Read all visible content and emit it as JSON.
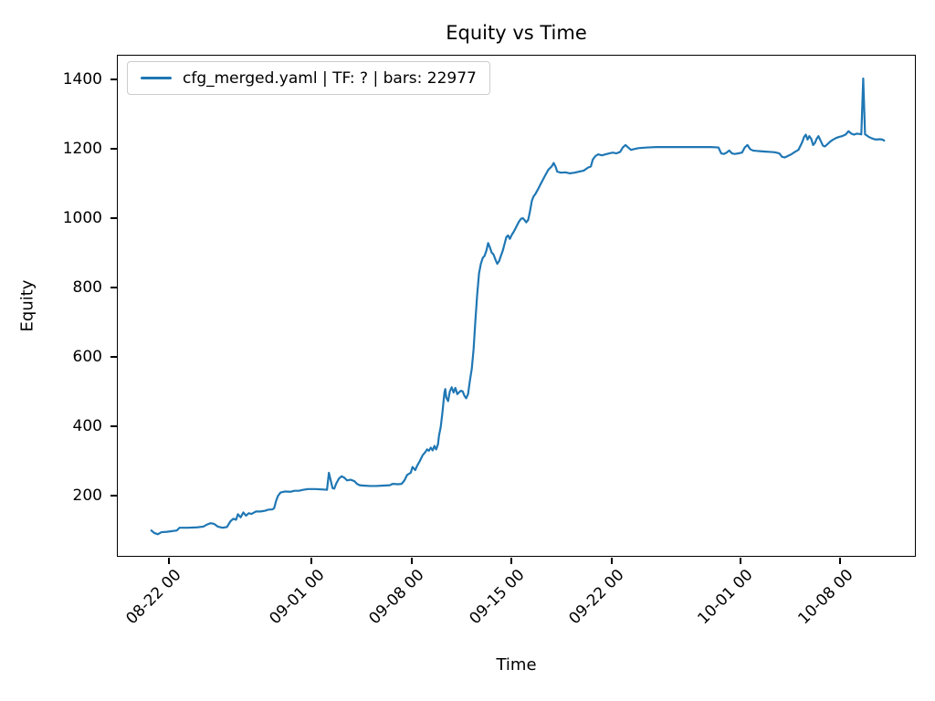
{
  "figure": {
    "title": "Equity vs Time",
    "xlabel": "Time",
    "ylabel": "Equity",
    "legend": {
      "label": "cfg_merged.yaml | TF: ? | bars: 22977",
      "line_color": "#1f77b4",
      "position": "upper left"
    }
  },
  "chart_data": {
    "type": "line",
    "title": "Equity vs Time",
    "xlabel": "Time",
    "ylabel": "Equity",
    "grid": false,
    "legend_position": "upper left",
    "x_unit": "days since 08-22 00:00",
    "xlim": [
      -3.64,
      52.3
    ],
    "ylim": [
      24,
      1471
    ],
    "y_ticks": [
      200,
      400,
      600,
      800,
      1000,
      1200,
      1400
    ],
    "x_ticks": [
      {
        "d": 0,
        "label": "08-22 00"
      },
      {
        "d": 10,
        "label": "09-01 00"
      },
      {
        "d": 17,
        "label": "09-08 00"
      },
      {
        "d": 24,
        "label": "09-15 00"
      },
      {
        "d": 31,
        "label": "09-22 00"
      },
      {
        "d": 40,
        "label": "10-01 00"
      },
      {
        "d": 47,
        "label": "10-08 00"
      }
    ],
    "series": [
      {
        "name": "cfg_merged.yaml | TF: ? | bars: 22977",
        "color": "#1f77b4",
        "points": [
          [
            -1.28,
            95
          ],
          [
            -1.09,
            88
          ],
          [
            -0.83,
            84
          ],
          [
            -0.58,
            90
          ],
          [
            -0.19,
            91
          ],
          [
            0.51,
            95
          ],
          [
            0.7,
            103
          ],
          [
            1.28,
            103
          ],
          [
            1.92,
            104
          ],
          [
            2.37,
            106
          ],
          [
            2.62,
            112
          ],
          [
            2.88,
            116
          ],
          [
            3.13,
            114
          ],
          [
            3.39,
            106
          ],
          [
            3.71,
            103
          ],
          [
            4.03,
            105
          ],
          [
            4.28,
            122
          ],
          [
            4.48,
            129
          ],
          [
            4.67,
            126
          ],
          [
            4.8,
            142
          ],
          [
            4.99,
            133
          ],
          [
            5.18,
            147
          ],
          [
            5.37,
            138
          ],
          [
            5.56,
            145
          ],
          [
            5.75,
            143
          ],
          [
            6.07,
            150
          ],
          [
            6.39,
            150
          ],
          [
            6.71,
            152
          ],
          [
            6.91,
            155
          ],
          [
            7.23,
            156
          ],
          [
            7.35,
            160
          ],
          [
            7.48,
            180
          ],
          [
            7.61,
            195
          ],
          [
            7.8,
            205
          ],
          [
            8.12,
            208
          ],
          [
            8.5,
            207
          ],
          [
            8.76,
            210
          ],
          [
            9.08,
            210
          ],
          [
            9.4,
            213
          ],
          [
            9.72,
            215
          ],
          [
            10.23,
            215
          ],
          [
            10.68,
            214
          ],
          [
            11.06,
            213
          ],
          [
            11.19,
            262
          ],
          [
            11.32,
            240
          ],
          [
            11.45,
            218
          ],
          [
            11.57,
            216
          ],
          [
            11.7,
            230
          ],
          [
            11.89,
            245
          ],
          [
            12.08,
            252
          ],
          [
            12.28,
            248
          ],
          [
            12.47,
            240
          ],
          [
            12.72,
            242
          ],
          [
            12.98,
            238
          ],
          [
            13.17,
            230
          ],
          [
            13.36,
            226
          ],
          [
            13.62,
            225
          ],
          [
            14.07,
            224
          ],
          [
            14.51,
            224
          ],
          [
            15.03,
            225
          ],
          [
            15.47,
            226
          ],
          [
            15.67,
            230
          ],
          [
            16.05,
            229
          ],
          [
            16.3,
            230
          ],
          [
            16.5,
            240
          ],
          [
            16.69,
            256
          ],
          [
            16.94,
            262
          ],
          [
            17.07,
            279
          ],
          [
            17.26,
            270
          ],
          [
            17.39,
            282
          ],
          [
            17.58,
            296
          ],
          [
            17.78,
            313
          ],
          [
            17.97,
            322
          ],
          [
            18.09,
            330
          ],
          [
            18.22,
            326
          ],
          [
            18.35,
            335
          ],
          [
            18.48,
            327
          ],
          [
            18.61,
            340
          ],
          [
            18.73,
            330
          ],
          [
            18.86,
            345
          ],
          [
            18.93,
            370
          ],
          [
            19.05,
            395
          ],
          [
            19.18,
            440
          ],
          [
            19.25,
            470
          ],
          [
            19.31,
            495
          ],
          [
            19.37,
            505
          ],
          [
            19.44,
            480
          ],
          [
            19.57,
            470
          ],
          [
            19.69,
            498
          ],
          [
            19.82,
            510
          ],
          [
            19.95,
            495
          ],
          [
            20.08,
            508
          ],
          [
            20.21,
            490
          ],
          [
            20.33,
            495
          ],
          [
            20.46,
            500
          ],
          [
            20.59,
            498
          ],
          [
            20.72,
            485
          ],
          [
            20.84,
            478
          ],
          [
            20.97,
            490
          ],
          [
            21.1,
            530
          ],
          [
            21.23,
            563
          ],
          [
            21.36,
            620
          ],
          [
            21.48,
            700
          ],
          [
            21.61,
            780
          ],
          [
            21.74,
            840
          ],
          [
            21.87,
            868
          ],
          [
            22.0,
            885
          ],
          [
            22.12,
            890
          ],
          [
            22.25,
            905
          ],
          [
            22.38,
            928
          ],
          [
            22.51,
            915
          ],
          [
            22.63,
            900
          ],
          [
            22.76,
            895
          ],
          [
            22.89,
            880
          ],
          [
            23.02,
            868
          ],
          [
            23.15,
            875
          ],
          [
            23.27,
            890
          ],
          [
            23.4,
            905
          ],
          [
            23.53,
            925
          ],
          [
            23.66,
            945
          ],
          [
            23.78,
            950
          ],
          [
            23.91,
            940
          ],
          [
            24.04,
            952
          ],
          [
            24.17,
            960
          ],
          [
            24.3,
            970
          ],
          [
            24.42,
            980
          ],
          [
            24.55,
            990
          ],
          [
            24.68,
            998
          ],
          [
            24.81,
            1000
          ],
          [
            24.93,
            995
          ],
          [
            25.06,
            988
          ],
          [
            25.19,
            995
          ],
          [
            25.32,
            1020
          ],
          [
            25.45,
            1050
          ],
          [
            25.57,
            1063
          ],
          [
            25.7,
            1070
          ],
          [
            25.83,
            1080
          ],
          [
            25.96,
            1090
          ],
          [
            26.08,
            1100
          ],
          [
            26.21,
            1110
          ],
          [
            26.34,
            1120
          ],
          [
            26.47,
            1130
          ],
          [
            26.6,
            1140
          ],
          [
            26.72,
            1145
          ],
          [
            26.85,
            1150
          ],
          [
            26.98,
            1160
          ],
          [
            27.11,
            1150
          ],
          [
            27.23,
            1135
          ],
          [
            27.49,
            1132
          ],
          [
            27.81,
            1133
          ],
          [
            28.13,
            1130
          ],
          [
            28.45,
            1132
          ],
          [
            28.77,
            1135
          ],
          [
            29.09,
            1138
          ],
          [
            29.41,
            1147
          ],
          [
            29.6,
            1150
          ],
          [
            29.73,
            1170
          ],
          [
            29.92,
            1180
          ],
          [
            30.11,
            1185
          ],
          [
            30.37,
            1182
          ],
          [
            30.63,
            1185
          ],
          [
            30.88,
            1188
          ],
          [
            31.14,
            1190
          ],
          [
            31.39,
            1188
          ],
          [
            31.65,
            1192
          ],
          [
            31.84,
            1205
          ],
          [
            32.03,
            1212
          ],
          [
            32.22,
            1205
          ],
          [
            32.42,
            1198
          ],
          [
            32.61,
            1200
          ],
          [
            32.93,
            1203
          ],
          [
            33.57,
            1205
          ],
          [
            34.21,
            1206
          ],
          [
            34.85,
            1206
          ],
          [
            35.48,
            1206
          ],
          [
            36.12,
            1206
          ],
          [
            36.76,
            1206
          ],
          [
            37.4,
            1206
          ],
          [
            38.04,
            1206
          ],
          [
            38.56,
            1205
          ],
          [
            38.75,
            1188
          ],
          [
            38.94,
            1186
          ],
          [
            39.13,
            1190
          ],
          [
            39.32,
            1196
          ],
          [
            39.51,
            1188
          ],
          [
            39.71,
            1186
          ],
          [
            39.96,
            1188
          ],
          [
            40.22,
            1190
          ],
          [
            40.41,
            1205
          ],
          [
            40.6,
            1212
          ],
          [
            40.79,
            1200
          ],
          [
            40.99,
            1196
          ],
          [
            41.24,
            1195
          ],
          [
            41.56,
            1194
          ],
          [
            41.88,
            1193
          ],
          [
            42.2,
            1192
          ],
          [
            42.52,
            1191
          ],
          [
            42.84,
            1188
          ],
          [
            43.03,
            1178
          ],
          [
            43.22,
            1176
          ],
          [
            43.42,
            1180
          ],
          [
            43.67,
            1185
          ],
          [
            43.93,
            1192
          ],
          [
            44.18,
            1198
          ],
          [
            44.44,
            1220
          ],
          [
            44.57,
            1235
          ],
          [
            44.7,
            1242
          ],
          [
            44.82,
            1228
          ],
          [
            44.95,
            1238
          ],
          [
            45.08,
            1230
          ],
          [
            45.21,
            1212
          ],
          [
            45.34,
            1218
          ],
          [
            45.46,
            1230
          ],
          [
            45.59,
            1238
          ],
          [
            45.72,
            1226
          ],
          [
            45.91,
            1210
          ],
          [
            46.04,
            1208
          ],
          [
            46.23,
            1215
          ],
          [
            46.42,
            1222
          ],
          [
            46.62,
            1228
          ],
          [
            46.81,
            1232
          ],
          [
            47.0,
            1235
          ],
          [
            47.26,
            1238
          ],
          [
            47.51,
            1243
          ],
          [
            47.7,
            1252
          ],
          [
            47.9,
            1245
          ],
          [
            48.09,
            1242
          ],
          [
            48.28,
            1245
          ],
          [
            48.47,
            1244
          ],
          [
            48.6,
            1243
          ],
          [
            48.73,
            1405
          ],
          [
            48.86,
            1243
          ],
          [
            48.98,
            1240
          ],
          [
            49.11,
            1236
          ],
          [
            49.3,
            1232
          ],
          [
            49.5,
            1229
          ],
          [
            49.69,
            1228
          ],
          [
            49.88,
            1229
          ],
          [
            50.07,
            1228
          ],
          [
            50.2,
            1225
          ]
        ]
      }
    ]
  }
}
